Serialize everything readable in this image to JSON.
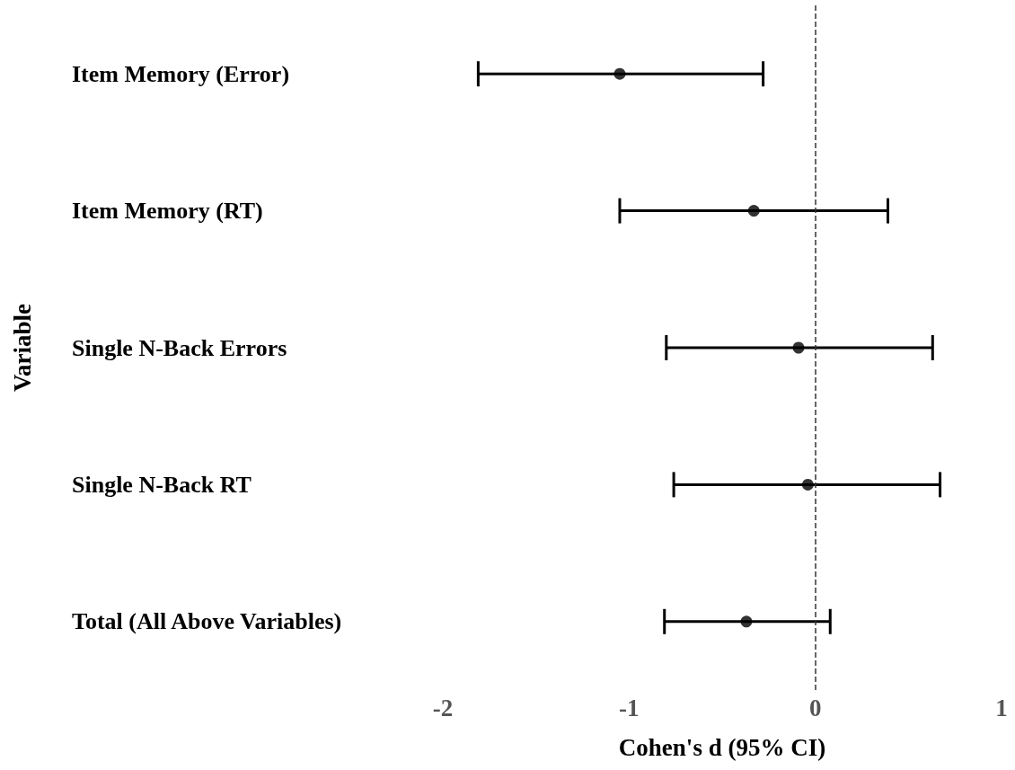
{
  "chart_data": {
    "type": "scatter",
    "orientation": "horizontal",
    "xlabel": "Cohen's d (95% CI)",
    "ylabel": "Variable",
    "categories": [
      "Item Memory (Error)",
      "Item Memory (RT)",
      "Single N-Back Errors",
      "Single N-Back RT",
      "Total (All Above Variables)"
    ],
    "values": [
      -1.05,
      -0.33,
      -0.09,
      -0.04,
      -0.37
    ],
    "errors": [
      [
        -1.81,
        -0.28
      ],
      [
        -1.05,
        0.39
      ],
      [
        -0.8,
        0.63
      ],
      [
        -0.76,
        0.67
      ],
      [
        -0.81,
        0.08
      ]
    ],
    "color": "#000000",
    "marker": "circle",
    "grid": false,
    "xlim": [
      -2,
      1
    ],
    "xticks": [
      -2,
      -1,
      0,
      1
    ],
    "ref_lines": [
      {
        "axis": "x",
        "value": 0,
        "line_style": "dashed",
        "color": "#333333"
      }
    ]
  }
}
